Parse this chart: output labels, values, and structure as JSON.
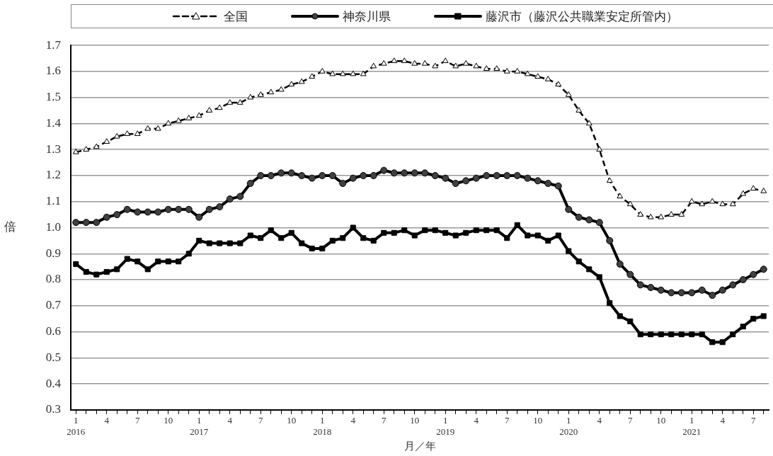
{
  "chart_data": {
    "type": "line",
    "categories": [
      "1\n2016",
      null,
      null,
      "4",
      null,
      null,
      "7",
      null,
      null,
      "10",
      null,
      null,
      "1\n2017",
      null,
      null,
      "4",
      null,
      null,
      "7",
      null,
      null,
      "10",
      null,
      null,
      "1\n2018",
      null,
      null,
      "4",
      null,
      null,
      "7",
      null,
      null,
      "10",
      null,
      null,
      "1\n2019",
      null,
      null,
      "4",
      null,
      null,
      "7",
      null,
      null,
      "10",
      null,
      null,
      "1\n2020",
      null,
      null,
      "4",
      null,
      null,
      "7",
      null,
      null,
      "10",
      null,
      null,
      "1\n2021",
      null,
      null,
      "4",
      null,
      null,
      "7",
      null
    ],
    "series": [
      {
        "name": "全国",
        "color": "#000000",
        "marker": "triangle",
        "line_style": "dashed",
        "values": [
          1.29,
          1.3,
          1.31,
          1.33,
          1.35,
          1.36,
          1.36,
          1.38,
          1.38,
          1.4,
          1.41,
          1.42,
          1.43,
          1.45,
          1.46,
          1.48,
          1.48,
          1.5,
          1.51,
          1.52,
          1.53,
          1.55,
          1.56,
          1.58,
          1.6,
          1.59,
          1.59,
          1.59,
          1.59,
          1.62,
          1.63,
          1.64,
          1.64,
          1.63,
          1.63,
          1.62,
          1.64,
          1.62,
          1.63,
          1.62,
          1.61,
          1.61,
          1.6,
          1.6,
          1.59,
          1.58,
          1.57,
          1.55,
          1.51,
          1.45,
          1.4,
          1.3,
          1.18,
          1.12,
          1.09,
          1.05,
          1.04,
          1.04,
          1.05,
          1.05,
          1.1,
          1.09,
          1.1,
          1.09,
          1.09,
          1.13,
          1.15,
          1.14
        ]
      },
      {
        "name": "神奈川県",
        "color": "#000000",
        "marker": "circle",
        "line_style": "solid",
        "values": [
          1.02,
          1.02,
          1.02,
          1.04,
          1.05,
          1.07,
          1.06,
          1.06,
          1.06,
          1.07,
          1.07,
          1.07,
          1.04,
          1.07,
          1.08,
          1.11,
          1.12,
          1.17,
          1.2,
          1.2,
          1.21,
          1.21,
          1.2,
          1.19,
          1.2,
          1.2,
          1.17,
          1.19,
          1.2,
          1.2,
          1.22,
          1.21,
          1.21,
          1.21,
          1.21,
          1.2,
          1.19,
          1.17,
          1.18,
          1.19,
          1.2,
          1.2,
          1.2,
          1.2,
          1.19,
          1.18,
          1.17,
          1.16,
          1.07,
          1.04,
          1.03,
          1.02,
          0.95,
          0.86,
          0.82,
          0.78,
          0.77,
          0.76,
          0.75,
          0.75,
          0.75,
          0.76,
          0.74,
          0.76,
          0.78,
          0.8,
          0.82,
          0.84
        ]
      },
      {
        "name": "藤沢市（藤沢公共職業安定所管内）",
        "color": "#000000",
        "marker": "square",
        "line_style": "solid",
        "values": [
          0.86,
          0.83,
          0.82,
          0.83,
          0.84,
          0.88,
          0.87,
          0.84,
          0.87,
          0.87,
          0.87,
          0.9,
          0.95,
          0.94,
          0.94,
          0.94,
          0.94,
          0.97,
          0.96,
          0.99,
          0.96,
          0.98,
          0.94,
          0.92,
          0.92,
          0.95,
          0.96,
          1.0,
          0.96,
          0.95,
          0.98,
          0.98,
          0.99,
          0.97,
          0.99,
          0.99,
          0.98,
          0.97,
          0.98,
          0.99,
          0.99,
          0.99,
          0.96,
          1.01,
          0.97,
          0.97,
          0.95,
          0.97,
          0.91,
          0.87,
          0.84,
          0.81,
          0.71,
          0.66,
          0.64,
          0.59,
          0.59,
          0.59,
          0.59,
          0.59,
          0.59,
          0.59,
          0.56,
          0.56,
          0.59,
          0.62,
          0.65,
          0.66
        ]
      }
    ],
    "xlabel": "月／年",
    "ylabel": "倍",
    "ylim": [
      0.3,
      1.7
    ],
    "yticks": [
      0.3,
      0.4,
      0.5,
      0.6,
      0.7,
      0.8,
      0.9,
      {
        "value": 1,
        "label": "1.0"
      },
      1.1,
      1.2,
      1.3,
      1.4,
      1.5,
      1.6,
      1.7
    ],
    "grid": "y",
    "legend": "top"
  }
}
